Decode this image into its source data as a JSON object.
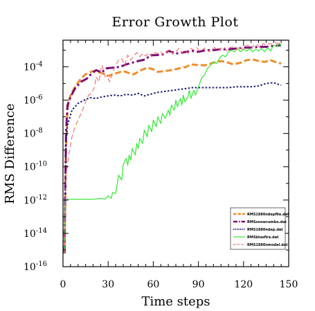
{
  "chart_data": {
    "type": "line",
    "title": "Error Growth Plot",
    "xlabel": "Time steps",
    "ylabel": "RMS Difference",
    "xlim": [
      0,
      150
    ],
    "ylim_log10": [
      -16,
      -2.4
    ],
    "y_scale": "log",
    "x_ticks": [
      0,
      30,
      60,
      90,
      120,
      150
    ],
    "y_ticks": [
      {
        "exp": -4,
        "label": "10",
        "sup": "-4"
      },
      {
        "exp": -6,
        "label": "10",
        "sup": "-6"
      },
      {
        "exp": -8,
        "label": "10",
        "sup": "-8"
      },
      {
        "exp": -10,
        "label": "10",
        "sup": "-10"
      },
      {
        "exp": -12,
        "label": "10",
        "sup": "-12"
      },
      {
        "exp": -14,
        "label": "10",
        "sup": "-14"
      },
      {
        "exp": -16,
        "label": "10",
        "sup": "-16"
      }
    ],
    "legend_position": "bottom-right",
    "series": [
      {
        "name": "RMS1880ndepfile.dat",
        "color": "#f08c28",
        "dash": "9,4",
        "width": 3,
        "points": [
          [
            1,
            -15.2
          ],
          [
            2,
            -9
          ],
          [
            3,
            -6.5
          ],
          [
            5,
            -5.7
          ],
          [
            8,
            -5.2
          ],
          [
            12,
            -4.7
          ],
          [
            15,
            -4.45
          ],
          [
            20,
            -4.25
          ],
          [
            25,
            -4.35
          ],
          [
            30,
            -4.55
          ],
          [
            35,
            -4.4
          ],
          [
            40,
            -4.25
          ],
          [
            43,
            -4.35
          ],
          [
            47,
            -4.45
          ],
          [
            52,
            -4.2
          ],
          [
            56,
            -4.05
          ],
          [
            60,
            -4.15
          ],
          [
            63,
            -4.3
          ],
          [
            68,
            -4.25
          ],
          [
            72,
            -4.2
          ],
          [
            77,
            -4.1
          ],
          [
            82,
            -4.0
          ],
          [
            85,
            -3.85
          ],
          [
            90,
            -3.9
          ],
          [
            95,
            -3.9
          ],
          [
            100,
            -3.75
          ],
          [
            105,
            -3.65
          ],
          [
            110,
            -3.75
          ],
          [
            113,
            -3.85
          ],
          [
            118,
            -3.75
          ],
          [
            122,
            -3.6
          ],
          [
            126,
            -3.55
          ],
          [
            130,
            -3.65
          ],
          [
            134,
            -3.7
          ],
          [
            138,
            -3.6
          ],
          [
            141,
            -3.7
          ],
          [
            145,
            -3.8
          ]
        ]
      },
      {
        "name": "RMSsnowcombo.dat",
        "color": "#7a0a78",
        "dash": "12,4,3,4",
        "width": 3,
        "points": [
          [
            1,
            -15.2
          ],
          [
            2,
            -8
          ],
          [
            3,
            -6.3
          ],
          [
            5,
            -5.8
          ],
          [
            8,
            -5.3
          ],
          [
            12,
            -4.9
          ],
          [
            16,
            -4.7
          ],
          [
            19,
            -4.4
          ],
          [
            22,
            -4.2
          ],
          [
            26,
            -4.35
          ],
          [
            28,
            -4.1
          ],
          [
            33,
            -4.05
          ],
          [
            38,
            -4.0
          ],
          [
            42,
            -3.85
          ],
          [
            46,
            -3.75
          ],
          [
            50,
            -3.65
          ],
          [
            55,
            -3.55
          ],
          [
            58,
            -3.3
          ],
          [
            62,
            -3.3
          ],
          [
            67,
            -3.25
          ],
          [
            70,
            -3.05
          ],
          [
            76,
            -3.2
          ],
          [
            82,
            -3.1
          ],
          [
            86,
            -3.05
          ],
          [
            90,
            -3.1
          ],
          [
            95,
            -3.0
          ],
          [
            100,
            -3.0
          ],
          [
            105,
            -2.95
          ],
          [
            110,
            -2.95
          ],
          [
            115,
            -2.9
          ],
          [
            120,
            -2.85
          ],
          [
            125,
            -2.85
          ],
          [
            130,
            -2.8
          ],
          [
            135,
            -2.8
          ],
          [
            140,
            -2.75
          ],
          [
            145,
            -2.7
          ]
        ]
      },
      {
        "name": "RMS1880ndep.dat",
        "color": "#1a1a78",
        "dash": "2.5,2.5",
        "width": 2,
        "points": [
          [
            1,
            -15.2
          ],
          [
            2,
            -8.5
          ],
          [
            3,
            -7.5
          ],
          [
            6,
            -6.6
          ],
          [
            10,
            -6.2
          ],
          [
            14,
            -6.0
          ],
          [
            18,
            -5.85
          ],
          [
            22,
            -5.9
          ],
          [
            26,
            -5.8
          ],
          [
            30,
            -5.75
          ],
          [
            34,
            -5.7
          ],
          [
            38,
            -5.75
          ],
          [
            42,
            -5.65
          ],
          [
            46,
            -5.7
          ],
          [
            50,
            -5.6
          ],
          [
            54,
            -5.75
          ],
          [
            58,
            -5.65
          ],
          [
            62,
            -5.55
          ],
          [
            66,
            -5.5
          ],
          [
            70,
            -5.45
          ],
          [
            74,
            -5.4
          ],
          [
            78,
            -5.35
          ],
          [
            82,
            -5.3
          ],
          [
            86,
            -5.25
          ],
          [
            90,
            -5.25
          ],
          [
            95,
            -5.25
          ],
          [
            100,
            -5.25
          ],
          [
            105,
            -5.25
          ],
          [
            110,
            -5.25
          ],
          [
            115,
            -5.2
          ],
          [
            120,
            -5.2
          ],
          [
            125,
            -5.2
          ],
          [
            130,
            -5.15
          ],
          [
            135,
            -5.0
          ],
          [
            140,
            -4.95
          ],
          [
            143,
            -5.05
          ],
          [
            145,
            -5.1
          ]
        ]
      },
      {
        "name": "RMSbluefire.dat",
        "color": "#3ee83e",
        "dash": "",
        "width": 1.3,
        "points": [
          [
            1,
            -15.2
          ],
          [
            1.5,
            -12.1
          ],
          [
            3,
            -11.95
          ],
          [
            10,
            -11.95
          ],
          [
            20,
            -11.95
          ],
          [
            25,
            -11.9
          ],
          [
            28,
            -11.95
          ],
          [
            30,
            -11.75
          ],
          [
            32,
            -11.9
          ],
          [
            33,
            -11.55
          ],
          [
            35,
            -11.6
          ],
          [
            37,
            -10.5
          ],
          [
            39,
            -10.8
          ],
          [
            40,
            -9.9
          ],
          [
            42,
            -9.5
          ],
          [
            43,
            -9.9
          ],
          [
            44,
            -9.3
          ],
          [
            45,
            -9.6
          ],
          [
            46,
            -8.9
          ],
          [
            48,
            -9.3
          ],
          [
            49,
            -8.6
          ],
          [
            50,
            -8.9
          ],
          [
            51,
            -8.3
          ],
          [
            53,
            -8.6
          ],
          [
            54,
            -7.8
          ],
          [
            56,
            -8.2
          ],
          [
            57,
            -7.5
          ],
          [
            59,
            -7.9
          ],
          [
            60,
            -7.2
          ],
          [
            62,
            -7.6
          ],
          [
            63,
            -7.0
          ],
          [
            65,
            -7.4
          ],
          [
            66,
            -6.8
          ],
          [
            68,
            -7.1
          ],
          [
            70,
            -6.6
          ],
          [
            71,
            -6.9
          ],
          [
            72,
            -6.3
          ],
          [
            74,
            -6.6
          ],
          [
            75,
            -6.0
          ],
          [
            76,
            -6.4
          ],
          [
            78,
            -5.9
          ],
          [
            79,
            -6.3
          ],
          [
            80,
            -5.7
          ],
          [
            81,
            -6.1
          ],
          [
            83,
            -5.8
          ],
          [
            84,
            -5.4
          ],
          [
            85,
            -5.9
          ],
          [
            87,
            -5.4
          ],
          [
            88,
            -5.7
          ],
          [
            90,
            -5.2
          ],
          [
            92,
            -4.7
          ],
          [
            94,
            -4.5
          ],
          [
            96,
            -4.1
          ],
          [
            98,
            -3.9
          ],
          [
            100,
            -3.7
          ],
          [
            102,
            -3.8
          ],
          [
            104,
            -3.5
          ],
          [
            106,
            -3.3
          ],
          [
            108,
            -3.4
          ],
          [
            110,
            -3.1
          ],
          [
            112,
            -3.0
          ],
          [
            114,
            -3.1
          ],
          [
            116,
            -2.9
          ],
          [
            118,
            -3.1
          ],
          [
            120,
            -2.95
          ],
          [
            122,
            -3.05
          ],
          [
            124,
            -2.9
          ],
          [
            126,
            -3.1
          ],
          [
            128,
            -2.95
          ],
          [
            130,
            -3.05
          ],
          [
            132,
            -2.9
          ],
          [
            134,
            -3.1
          ],
          [
            136,
            -2.85
          ],
          [
            138,
            -3.05
          ],
          [
            140,
            -2.7
          ],
          [
            142,
            -2.8
          ],
          [
            144,
            -2.6
          ],
          [
            145,
            -2.75
          ]
        ]
      },
      {
        "name": "RMS1880nmodel.dat",
        "color": "#f07070",
        "dash": "7,4",
        "width": 1.2,
        "points": [
          [
            1,
            -15.2
          ],
          [
            2,
            -10.5
          ],
          [
            4,
            -9.2
          ],
          [
            6,
            -8.2
          ],
          [
            8,
            -7.6
          ],
          [
            11,
            -7.0
          ],
          [
            13,
            -6.6
          ],
          [
            15,
            -6.1
          ],
          [
            17,
            -5.7
          ],
          [
            19,
            -5.6
          ],
          [
            21,
            -5.2
          ],
          [
            22,
            -4.6
          ],
          [
            24,
            -4.9
          ],
          [
            25,
            -4.2
          ],
          [
            26,
            -3.9
          ],
          [
            28,
            -4.6
          ],
          [
            30,
            -4.7
          ],
          [
            31,
            -4.9
          ],
          [
            33,
            -4.3
          ],
          [
            35,
            -3.9
          ],
          [
            37,
            -3.6
          ],
          [
            39,
            -3.5
          ],
          [
            41,
            -3.9
          ],
          [
            43,
            -3.3
          ],
          [
            45,
            -3.6
          ],
          [
            47,
            -3.35
          ],
          [
            49,
            -3.15
          ],
          [
            51,
            -3.4
          ],
          [
            53,
            -3.2
          ],
          [
            55,
            -3.35
          ],
          [
            57,
            -3.15
          ],
          [
            59,
            -3.4
          ],
          [
            61,
            -3.15
          ],
          [
            63,
            -3.2
          ],
          [
            65,
            -3.1
          ],
          [
            67,
            -3.3
          ],
          [
            69,
            -3.1
          ],
          [
            71,
            -2.95
          ],
          [
            73,
            -3.25
          ],
          [
            75,
            -3.1
          ],
          [
            77,
            -2.9
          ],
          [
            79,
            -3.15
          ],
          [
            81,
            -3.0
          ],
          [
            83,
            -3.2
          ],
          [
            85,
            -2.9
          ],
          [
            87,
            -3.0
          ],
          [
            89,
            -2.85
          ],
          [
            91,
            -3.1
          ],
          [
            93,
            -2.95
          ],
          [
            95,
            -2.85
          ],
          [
            97,
            -3.1
          ],
          [
            99,
            -2.9
          ],
          [
            101,
            -2.85
          ],
          [
            103,
            -3.05
          ],
          [
            105,
            -2.9
          ],
          [
            107,
            -2.8
          ],
          [
            109,
            -3.05
          ],
          [
            111,
            -2.85
          ],
          [
            113,
            -2.8
          ],
          [
            115,
            -3.0
          ],
          [
            117,
            -2.75
          ],
          [
            119,
            -2.95
          ],
          [
            121,
            -2.75
          ],
          [
            123,
            -2.7
          ],
          [
            125,
            -2.9
          ],
          [
            127,
            -2.7
          ],
          [
            129,
            -2.65
          ],
          [
            131,
            -2.85
          ],
          [
            133,
            -2.6
          ],
          [
            135,
            -2.7
          ],
          [
            137,
            -2.6
          ],
          [
            139,
            -2.65
          ],
          [
            141,
            -2.55
          ],
          [
            143,
            -2.6
          ],
          [
            145,
            -2.55
          ]
        ]
      }
    ]
  }
}
